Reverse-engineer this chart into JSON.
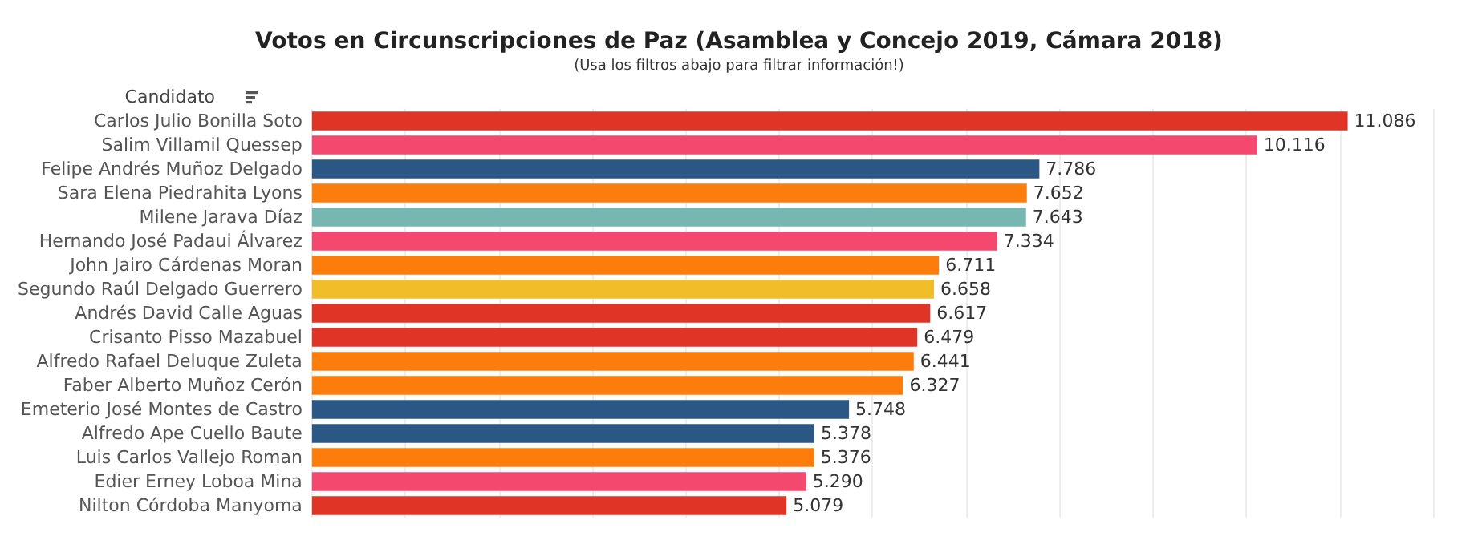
{
  "chart_data": {
    "type": "bar",
    "orientation": "horizontal",
    "title": "Votos en Circunscripciones de Paz (Asamblea y Concejo 2019, Cámara 2018)",
    "subtitle": "(Usa los filtros abajo para filtrar información!)",
    "ylabel": "Candidato",
    "categories": [
      "Carlos Julio Bonilla Soto",
      "Salim Villamil Quessep",
      "Felipe Andrés Muñoz Delgado",
      "Sara Elena Piedrahita Lyons",
      "Milene Jarava Díaz",
      "Hernando José Padaui Álvarez",
      "John Jairo Cárdenas Moran",
      "Segundo Raúl Delgado Guerrero",
      "Andrés David Calle Aguas",
      "Crisanto Pisso Mazabuel",
      "Alfredo Rafael Deluque Zuleta",
      "Faber Alberto Muñoz Cerón",
      "Emeterio José Montes de Castro",
      "Alfredo Ape Cuello Baute",
      "Luis Carlos Vallejo Roman",
      "Edier Erney Loboa Mina",
      "Nilton Córdoba Manyoma"
    ],
    "values": [
      11086,
      10116,
      7786,
      7652,
      7643,
      7334,
      6711,
      6658,
      6617,
      6479,
      6441,
      6327,
      5748,
      5378,
      5376,
      5290,
      5079
    ],
    "value_labels": [
      "11.086",
      "10.116",
      "7.786",
      "7.652",
      "7.643",
      "7.334",
      "6.711",
      "6.658",
      "6.617",
      "6.479",
      "6.441",
      "6.327",
      "5.748",
      "5.378",
      "5.376",
      "5.290",
      "5.079"
    ],
    "colors": [
      "#e03426",
      "#f5486f",
      "#2a5783",
      "#fc7d0b",
      "#76b7b2",
      "#f5486f",
      "#fc7d0b",
      "#f1be29",
      "#e03426",
      "#e03426",
      "#fc7d0b",
      "#fc7d0b",
      "#2a5783",
      "#2a5783",
      "#fc7d0b",
      "#f5486f",
      "#e03426"
    ],
    "xlim": [
      0,
      12000
    ],
    "xticks": [
      {
        "value": 0,
        "label": null
      },
      {
        "value": 1000,
        "label": null
      },
      {
        "value": 2000,
        "label": null
      },
      {
        "value": 3000,
        "label": null
      },
      {
        "value": 4000,
        "label": null
      },
      {
        "value": 5000,
        "label": null
      },
      {
        "value": 6000,
        "label": null
      },
      {
        "value": 7000,
        "label": null
      },
      {
        "value": 8000,
        "label": null
      },
      {
        "value": 9000,
        "label": null
      },
      {
        "value": 10000,
        "label": null
      },
      {
        "value": 11000,
        "label": null
      },
      {
        "value": 12000,
        "label": null
      }
    ],
    "grid": "x",
    "tick_labels": "y"
  }
}
